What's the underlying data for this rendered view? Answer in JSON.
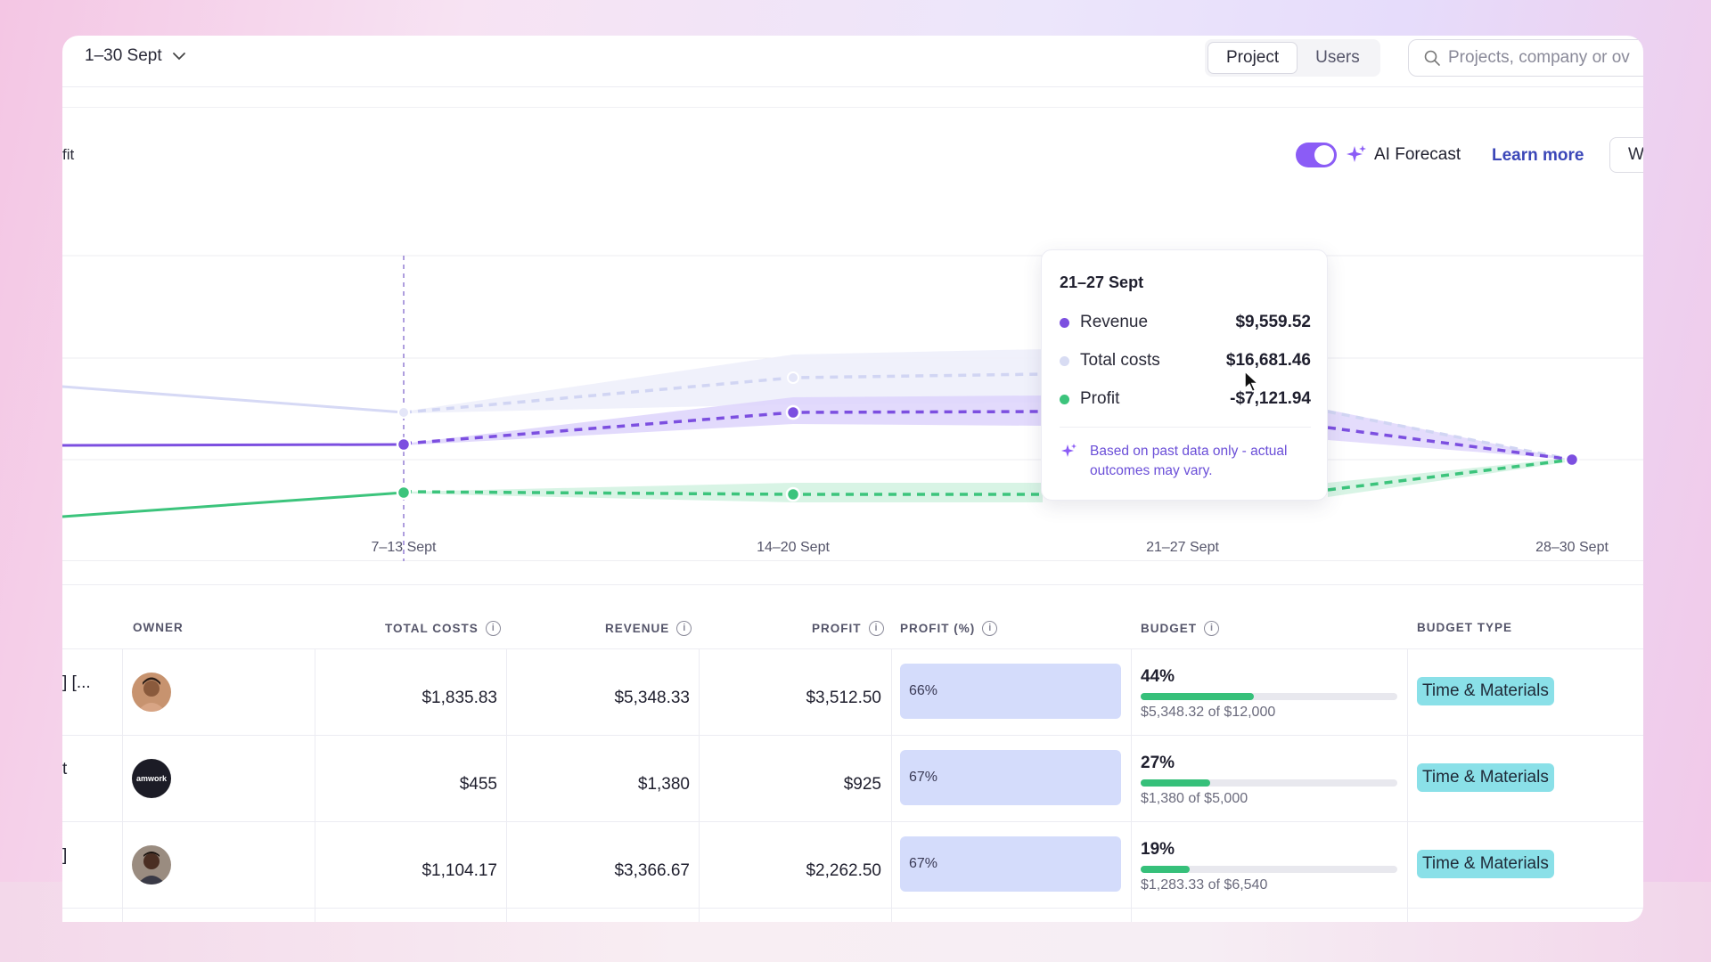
{
  "topbar": {
    "date_range": "1–30 Sept",
    "tabs": [
      {
        "label": "Project",
        "active": true
      },
      {
        "label": "Users",
        "active": false
      }
    ],
    "search_placeholder": "Projects, company or ov"
  },
  "toolbar": {
    "left_label": "fit",
    "ai_forecast_enabled": true,
    "ai_forecast_label": "AI Forecast",
    "learn_more": "Learn more",
    "w_button": "W"
  },
  "chart_data": {
    "type": "line",
    "categories": [
      "7–13 Sept",
      "14–20 Sept",
      "21–27 Sept",
      "28–30 Sept"
    ],
    "series": [
      {
        "name": "Revenue",
        "color": "#7c4fe0"
      },
      {
        "name": "Total costs",
        "color": "#d6d9f5"
      },
      {
        "name": "Profit",
        "color": "#3cc47c"
      }
    ],
    "forecast_note": "Based on past data only - actual outcomes may vary."
  },
  "tooltip": {
    "title": "21–27 Sept",
    "rows": [
      {
        "label": "Revenue",
        "value": "$9,559.52",
        "color": "#7c4fe0"
      },
      {
        "label": "Total costs",
        "value": "$16,681.46",
        "color": "#d8dcf3"
      },
      {
        "label": "Profit",
        "value": "-$7,121.94",
        "color": "#3cc47c"
      }
    ],
    "note": "Based on past data only - actual outcomes may vary."
  },
  "table": {
    "headers": {
      "owner": "OWNER",
      "total_costs": "TOTAL COSTS",
      "revenue": "REVENUE",
      "profit": "PROFIT",
      "profit_pct": "PROFIT (%)",
      "budget": "BUDGET",
      "budget_type": "BUDGET TYPE"
    },
    "rows": [
      {
        "name_fragment": "] [...",
        "avatar": "person-avatar",
        "total_costs": "$1,835.83",
        "revenue": "$5,348.33",
        "profit": "$3,512.50",
        "profit_pct": "66%",
        "budget_pct": "44%",
        "budget_fill": 0.44,
        "budget_sub": "$5,348.32 of $12,000",
        "budget_type": "Time & Materials"
      },
      {
        "name_fragment": "t",
        "avatar": "company-logo-avatar",
        "avatar_text": "amwork",
        "total_costs": "$455",
        "revenue": "$1,380",
        "profit": "$925",
        "profit_pct": "67%",
        "budget_pct": "27%",
        "budget_fill": 0.27,
        "budget_sub": "$1,380 of $5,000",
        "budget_type": "Time & Materials"
      },
      {
        "name_fragment": "]",
        "avatar": "person-avatar",
        "total_costs": "$1,104.17",
        "revenue": "$3,366.67",
        "profit": "$2,262.50",
        "profit_pct": "67%",
        "budget_pct": "19%",
        "budget_fill": 0.19,
        "budget_sub": "$1,283.33 of $6,540",
        "budget_type": "Time & Materials"
      }
    ]
  }
}
